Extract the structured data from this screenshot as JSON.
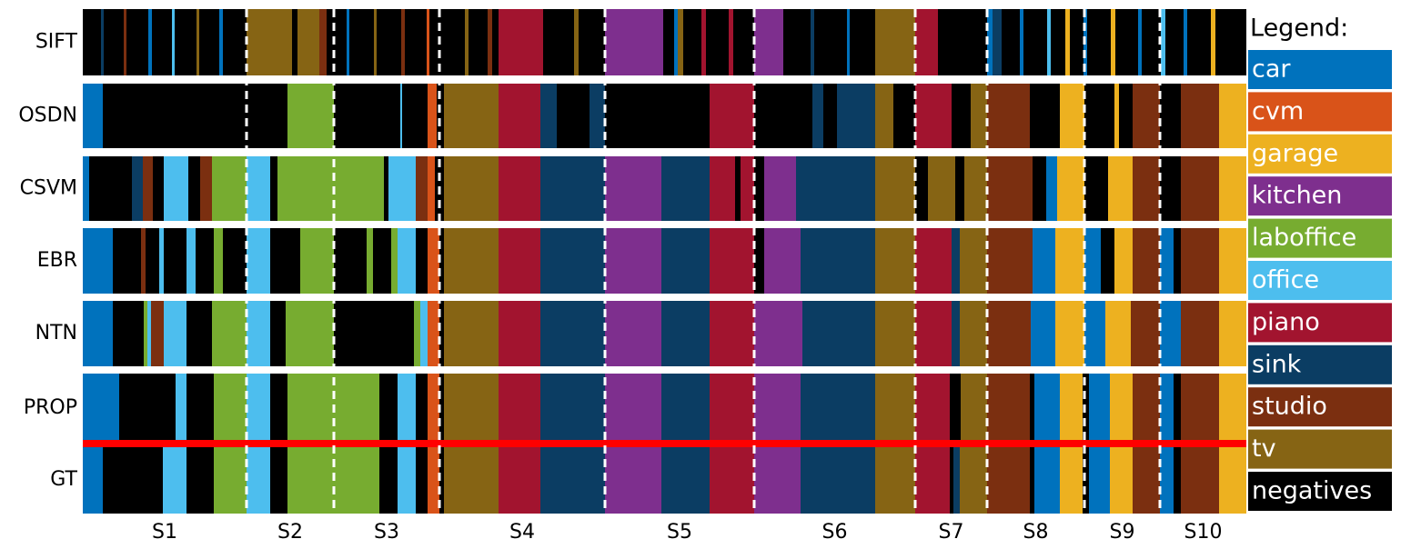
{
  "chart_data": {
    "type": "segmentation",
    "xlim": [
      0,
      1279
    ],
    "boundaries": [
      180,
      276,
      392,
      574,
      738,
      915,
      994,
      1101,
      1184
    ],
    "session_labels": [
      "S1",
      "S2",
      "S3",
      "S4",
      "S5",
      "S6",
      "S7",
      "S8",
      "S9",
      "S10"
    ],
    "legend": {
      "title": "Legend:",
      "entries": [
        {
          "name": "car",
          "color": "#0072bd"
        },
        {
          "name": "cvm",
          "color": "#d95319"
        },
        {
          "name": "garage",
          "color": "#edb120"
        },
        {
          "name": "kitchen",
          "color": "#7e2f8e"
        },
        {
          "name": "laboffice",
          "color": "#77ac30"
        },
        {
          "name": "office",
          "color": "#4dbeee"
        },
        {
          "name": "piano",
          "color": "#a2142f"
        },
        {
          "name": "sink",
          "color": "#0b3d63"
        },
        {
          "name": "studio",
          "color": "#7b2f10"
        },
        {
          "name": "tv",
          "color": "#866414"
        },
        {
          "name": "negatives",
          "color": "#000000"
        }
      ]
    },
    "rows": [
      {
        "name": "SIFT",
        "edges": [
          0,
          20,
          23,
          45,
          48,
          72,
          76,
          98,
          101,
          125,
          128,
          150,
          154,
          180,
          230,
          236,
          260,
          268,
          276,
          290,
          293,
          320,
          323,
          350,
          354,
          378,
          381,
          397,
          420,
          424,
          445,
          450,
          457,
          506,
          540,
          545,
          574,
          638,
          650,
          654,
          660,
          680,
          685,
          710,
          715,
          738,
          770,
          800,
          804,
          840,
          843,
          871,
          915,
          940,
          994,
          1000,
          1010,
          1030,
          1034,
          1060,
          1064,
          1080,
          1085,
          1100,
          1104,
          1130,
          1135,
          1160,
          1164,
          1185,
          1190,
          1210,
          1214,
          1240,
          1245,
          1279
        ],
        "classes": [
          10,
          7,
          10,
          8,
          10,
          0,
          10,
          5,
          10,
          9,
          10,
          0,
          10,
          9,
          10,
          9,
          8,
          10,
          10,
          0,
          10,
          9,
          10,
          8,
          10,
          1,
          10,
          10,
          9,
          10,
          8,
          10,
          6,
          10,
          9,
          10,
          3,
          10,
          0,
          9,
          10,
          6,
          10,
          6,
          10,
          3,
          10,
          7,
          10,
          0,
          10,
          9,
          6,
          10,
          0,
          7,
          10,
          0,
          10,
          5,
          10,
          2,
          10,
          0,
          10,
          2,
          10,
          0,
          10,
          5,
          10,
          0,
          10,
          2,
          10
        ]
      },
      {
        "name": "OSDN",
        "edges": [
          0,
          22,
          225,
          276,
          349,
          351,
          379,
          389,
          397,
          457,
          503,
          521,
          557,
          574,
          689,
          738,
          802,
          814,
          829,
          871,
          891,
          915,
          955,
          976,
          994,
          1041,
          1074,
          1101,
          1134,
          1139,
          1154,
          1184,
          1207,
          1249,
          1279
        ],
        "classes": [
          0,
          10,
          4,
          10,
          5,
          10,
          1,
          10,
          9,
          6,
          7,
          10,
          7,
          10,
          6,
          10,
          7,
          10,
          7,
          9,
          10,
          6,
          10,
          9,
          8,
          10,
          2,
          10,
          2,
          10,
          8,
          10,
          8,
          2
        ]
      },
      {
        "name": "CSVM",
        "edges": [
          0,
          7,
          54,
          66,
          77,
          89,
          116,
          129,
          142,
          180,
          206,
          214,
          331,
          336,
          366,
          379,
          387,
          397,
          457,
          503,
          574,
          636,
          689,
          717,
          723,
          738,
          749,
          784,
          871,
          915,
          929,
          959,
          969,
          994,
          1044,
          1059,
          1071,
          1101,
          1127,
          1154,
          1184,
          1207,
          1249,
          1279
        ],
        "classes": [
          0,
          10,
          7,
          8,
          10,
          5,
          10,
          8,
          4,
          5,
          10,
          4,
          10,
          5,
          8,
          1,
          10,
          9,
          6,
          7,
          3,
          7,
          6,
          10,
          6,
          10,
          3,
          7,
          9,
          10,
          9,
          10,
          9,
          8,
          10,
          0,
          2,
          10,
          2,
          8,
          10,
          8,
          2
        ]
      },
      {
        "name": "EBR",
        "edges": [
          0,
          33,
          64,
          69,
          84,
          89,
          114,
          124,
          144,
          154,
          180,
          206,
          239,
          276,
          312,
          319,
          339,
          346,
          366,
          379,
          392,
          397,
          457,
          503,
          574,
          636,
          689,
          738,
          749,
          789,
          871,
          915,
          955,
          964,
          994,
          1044,
          1069,
          1101,
          1119,
          1134,
          1154,
          1184,
          1199,
          1207,
          1249,
          1279
        ],
        "classes": [
          0,
          10,
          8,
          10,
          5,
          10,
          5,
          10,
          4,
          10,
          5,
          10,
          4,
          10,
          4,
          10,
          4,
          5,
          10,
          1,
          10,
          9,
          6,
          7,
          3,
          7,
          6,
          10,
          3,
          7,
          9,
          6,
          7,
          9,
          8,
          0,
          2,
          0,
          10,
          2,
          8,
          0,
          10,
          8,
          2
        ]
      },
      {
        "name": "NTN",
        "edges": [
          0,
          33,
          67,
          71,
          75,
          89,
          114,
          142,
          180,
          206,
          223,
          276,
          364,
          371,
          379,
          392,
          397,
          457,
          503,
          574,
          636,
          689,
          738,
          791,
          871,
          915,
          955,
          964,
          994,
          1042,
          1069,
          1101,
          1124,
          1152,
          1184,
          1207,
          1249,
          1279
        ],
        "classes": [
          0,
          10,
          4,
          5,
          8,
          5,
          10,
          4,
          5,
          10,
          4,
          10,
          4,
          5,
          1,
          10,
          9,
          6,
          7,
          3,
          7,
          6,
          3,
          7,
          9,
          6,
          7,
          9,
          8,
          0,
          2,
          0,
          2,
          8,
          0,
          8,
          2
        ]
      },
      {
        "name": "PROP",
        "edges": [
          0,
          40,
          102,
          114,
          144,
          180,
          206,
          225,
          326,
          346,
          366,
          379,
          392,
          397,
          457,
          503,
          574,
          636,
          689,
          738,
          789,
          871,
          915,
          953,
          965,
          994,
          1041,
          1046,
          1074,
          1099,
          1106,
          1129,
          1154,
          1184,
          1199,
          1207,
          1249,
          1279
        ],
        "classes": [
          0,
          10,
          5,
          10,
          4,
          5,
          10,
          4,
          10,
          5,
          10,
          1,
          10,
          9,
          6,
          7,
          3,
          7,
          6,
          3,
          7,
          9,
          6,
          10,
          9,
          8,
          10,
          0,
          2,
          10,
          0,
          2,
          8,
          0,
          10,
          8,
          2
        ]
      },
      {
        "name": "GT",
        "edges": [
          0,
          22,
          88,
          114,
          144,
          180,
          206,
          225,
          326,
          346,
          366,
          379,
          392,
          397,
          457,
          503,
          574,
          636,
          689,
          738,
          789,
          871,
          915,
          953,
          957,
          964,
          994,
          1041,
          1046,
          1074,
          1099,
          1106,
          1129,
          1154,
          1184,
          1199,
          1207,
          1249,
          1279
        ],
        "classes": [
          0,
          10,
          5,
          10,
          4,
          5,
          10,
          4,
          10,
          5,
          10,
          1,
          10,
          9,
          6,
          7,
          3,
          7,
          6,
          3,
          7,
          9,
          6,
          10,
          7,
          9,
          8,
          10,
          0,
          2,
          10,
          0,
          2,
          8,
          0,
          10,
          8,
          2
        ]
      }
    ]
  }
}
